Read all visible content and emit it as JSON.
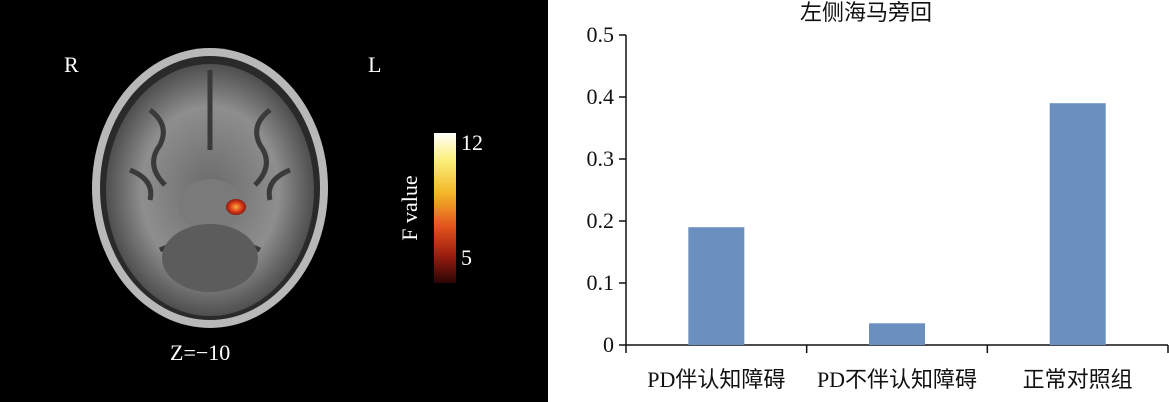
{
  "mri": {
    "right_label": "R",
    "left_label": "L",
    "slice_label": "Z=−10",
    "colorbar_title": "F value",
    "colorbar_max": "12",
    "colorbar_min": "5"
  },
  "chart_data": {
    "type": "bar",
    "title": "左侧海马旁回",
    "categories": [
      "PD伴认知障碍",
      "PD不伴认知障碍",
      "正常对照组"
    ],
    "values": [
      0.19,
      0.035,
      0.39
    ],
    "ylim": [
      0,
      0.5
    ],
    "yticks": [
      "0",
      "0.1",
      "0.2",
      "0.3",
      "0.4",
      "0.5"
    ],
    "bar_color": "#6b8fbf",
    "xlabel": "",
    "ylabel": "",
    "grid": false
  }
}
